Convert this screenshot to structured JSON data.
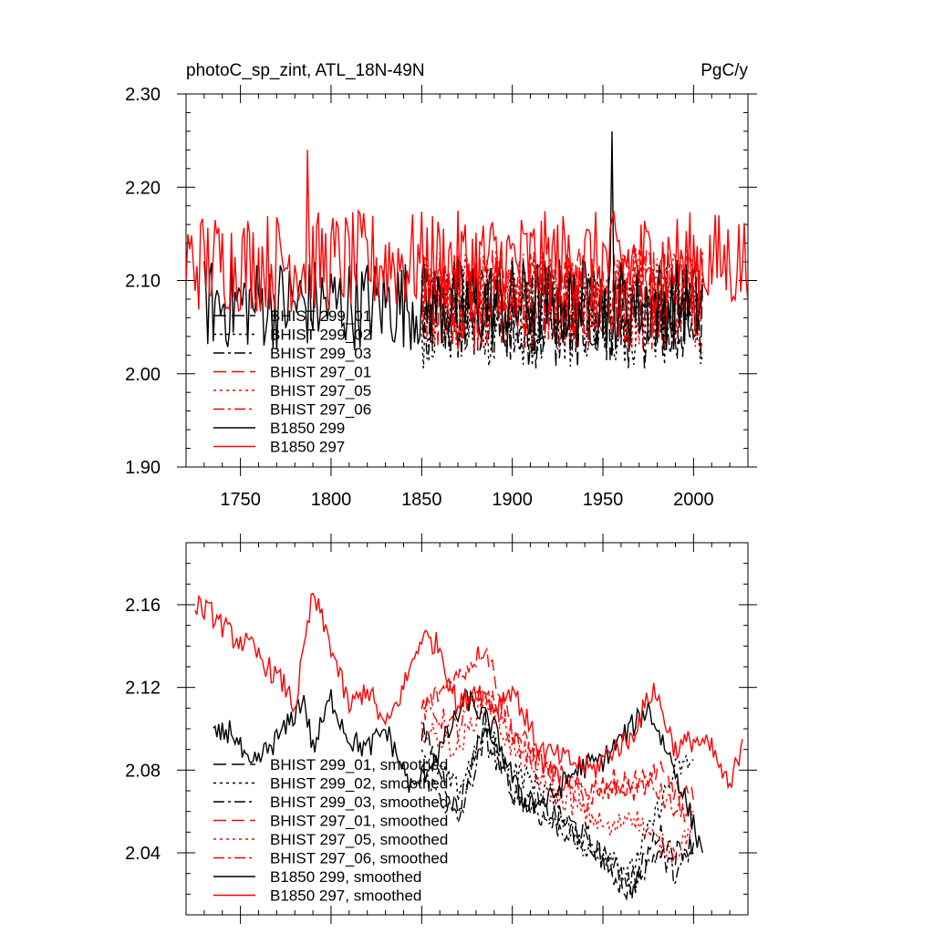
{
  "chart_data": [
    {
      "type": "line",
      "title": "photoC_sp_zint, ATL_18N-49N",
      "units": "PgC/y",
      "xlabel": "",
      "ylabel": "",
      "xlim": [
        1720,
        2030
      ],
      "ylim": [
        1.9,
        2.3
      ],
      "xticks": [
        1750,
        1800,
        1850,
        1900,
        1950,
        2000
      ],
      "xtick_labels": [
        "1750",
        "1800",
        "1850",
        "1900",
        "1950",
        "2000"
      ],
      "yticks": [
        1.9,
        2.0,
        2.1,
        2.2,
        2.3
      ],
      "ytick_labels": [
        "1.90",
        "2.00",
        "2.10",
        "2.20",
        "2.30"
      ],
      "legend_position": "bottom-left",
      "series": [
        {
          "name": "BHIST 299_01",
          "color": "#000000",
          "dash": "long-dash",
          "x_start": 1850,
          "x_end": 2005,
          "mean": 2.06,
          "amplitude": 0.055
        },
        {
          "name": "BHIST 299_02",
          "color": "#000000",
          "dash": "dot",
          "x_start": 1850,
          "x_end": 2005,
          "mean": 2.06,
          "amplitude": 0.055
        },
        {
          "name": "BHIST 299_03",
          "color": "#000000",
          "dash": "dash-dot",
          "x_start": 1850,
          "x_end": 2005,
          "mean": 2.065,
          "amplitude": 0.05
        },
        {
          "name": "BHIST 297_01",
          "color": "#ff0000",
          "dash": "long-dash",
          "x_start": 1850,
          "x_end": 2005,
          "mean": 2.08,
          "amplitude": 0.055
        },
        {
          "name": "BHIST 297_05",
          "color": "#ff0000",
          "dash": "dot",
          "x_start": 1850,
          "x_end": 2005,
          "mean": 2.08,
          "amplitude": 0.055
        },
        {
          "name": "BHIST 297_06",
          "color": "#ff0000",
          "dash": "dash-dot",
          "x_start": 1850,
          "x_end": 2005,
          "mean": 2.085,
          "amplitude": 0.05
        },
        {
          "name": "B1850 299",
          "color": "#000000",
          "dash": "solid",
          "x_start": 1730,
          "x_end": 2005,
          "mean": 2.075,
          "amplitude": 0.05,
          "peak": {
            "x": 1955,
            "y": 2.26
          }
        },
        {
          "name": "B1850 297",
          "color": "#ff0000",
          "dash": "solid",
          "x_start": 1720,
          "x_end": 2030,
          "mean": 2.12,
          "amplitude": 0.055,
          "peak": {
            "x": 1787,
            "y": 2.24
          }
        }
      ]
    },
    {
      "type": "line",
      "title": "",
      "xlabel": "",
      "ylabel": "",
      "xlim": [
        1720,
        2030
      ],
      "ylim": [
        2.01,
        2.19
      ],
      "xticks": [
        1750,
        1800,
        1850,
        1900,
        1950,
        2000
      ],
      "yticks": [
        2.04,
        2.08,
        2.12,
        2.16
      ],
      "ytick_labels": [
        "2.04",
        "2.08",
        "2.12",
        "2.16"
      ],
      "legend_position": "bottom-left",
      "series": [
        {
          "name": "BHIST 299_01, smoothed",
          "color": "#000000",
          "dash": "long-dash",
          "x": [
            1850,
            1870,
            1885,
            1900,
            1920,
            1940,
            1955,
            1965,
            1980,
            1990,
            2000
          ],
          "y": [
            2.1,
            2.06,
            2.105,
            2.07,
            2.06,
            2.05,
            2.03,
            2.02,
            2.05,
            2.04,
            2.045
          ]
        },
        {
          "name": "BHIST 299_02, smoothed",
          "color": "#000000",
          "dash": "dot",
          "x": [
            1850,
            1870,
            1885,
            1900,
            1920,
            1940,
            1955,
            1965,
            1980,
            1990,
            2000
          ],
          "y": [
            2.09,
            2.07,
            2.1,
            2.08,
            2.07,
            2.04,
            2.04,
            2.03,
            2.06,
            2.08,
            2.085
          ]
        },
        {
          "name": "BHIST 299_03, smoothed",
          "color": "#000000",
          "dash": "dash-dot",
          "x": [
            1850,
            1870,
            1885,
            1900,
            1920,
            1940,
            1955,
            1965,
            1980,
            1990,
            2000
          ],
          "y": [
            2.08,
            2.055,
            2.095,
            2.07,
            2.055,
            2.045,
            2.035,
            2.025,
            2.04,
            2.03,
            2.04
          ]
        },
        {
          "name": "BHIST 297_01, smoothed",
          "color": "#ff0000",
          "dash": "long-dash",
          "x": [
            1850,
            1870,
            1885,
            1900,
            1920,
            1940,
            1955,
            1965,
            1980,
            1990,
            2000
          ],
          "y": [
            2.11,
            2.125,
            2.14,
            2.1,
            2.08,
            2.07,
            2.075,
            2.07,
            2.08,
            2.07,
            2.065
          ]
        },
        {
          "name": "BHIST 297_05, smoothed",
          "color": "#ff0000",
          "dash": "dot",
          "x": [
            1850,
            1870,
            1885,
            1900,
            1920,
            1940,
            1955,
            1965,
            1980,
            1990,
            2000
          ],
          "y": [
            2.1,
            2.09,
            2.115,
            2.09,
            2.07,
            2.06,
            2.05,
            2.06,
            2.045,
            2.04,
            2.055
          ]
        },
        {
          "name": "BHIST 297_06, smoothed",
          "color": "#ff0000",
          "dash": "dash-dot",
          "x": [
            1850,
            1870,
            1885,
            1900,
            1920,
            1940,
            1955,
            1965,
            1980,
            1990,
            2000
          ],
          "y": [
            2.11,
            2.1,
            2.12,
            2.095,
            2.08,
            2.065,
            2.07,
            2.075,
            2.07,
            2.06,
            2.06
          ]
        },
        {
          "name": "B1850 299, smoothed",
          "color": "#000000",
          "dash": "solid",
          "x": [
            1735,
            1745,
            1755,
            1765,
            1775,
            1785,
            1790,
            1800,
            1810,
            1820,
            1830,
            1845,
            1860,
            1875,
            1890,
            1905,
            1920,
            1935,
            1950,
            1960,
            1975,
            1990,
            2005
          ],
          "y": [
            2.095,
            2.1,
            2.08,
            2.09,
            2.1,
            2.115,
            2.09,
            2.115,
            2.095,
            2.09,
            2.1,
            2.07,
            2.09,
            2.115,
            2.1,
            2.065,
            2.065,
            2.08,
            2.085,
            2.095,
            2.11,
            2.08,
            2.04
          ]
        },
        {
          "name": "B1850 297, smoothed",
          "color": "#ff0000",
          "dash": "solid",
          "x": [
            1725,
            1735,
            1745,
            1755,
            1765,
            1775,
            1780,
            1790,
            1800,
            1810,
            1820,
            1830,
            1840,
            1850,
            1860,
            1870,
            1880,
            1890,
            1900,
            1915,
            1930,
            1945,
            1955,
            1965,
            1978,
            1990,
            2000,
            2010,
            2020,
            2027
          ],
          "y": [
            2.16,
            2.155,
            2.145,
            2.14,
            2.13,
            2.12,
            2.11,
            2.165,
            2.14,
            2.11,
            2.12,
            2.1,
            2.12,
            2.145,
            2.14,
            2.11,
            2.12,
            2.11,
            2.12,
            2.09,
            2.085,
            2.08,
            2.09,
            2.095,
            2.12,
            2.09,
            2.095,
            2.09,
            2.07,
            2.095
          ]
        }
      ]
    }
  ]
}
